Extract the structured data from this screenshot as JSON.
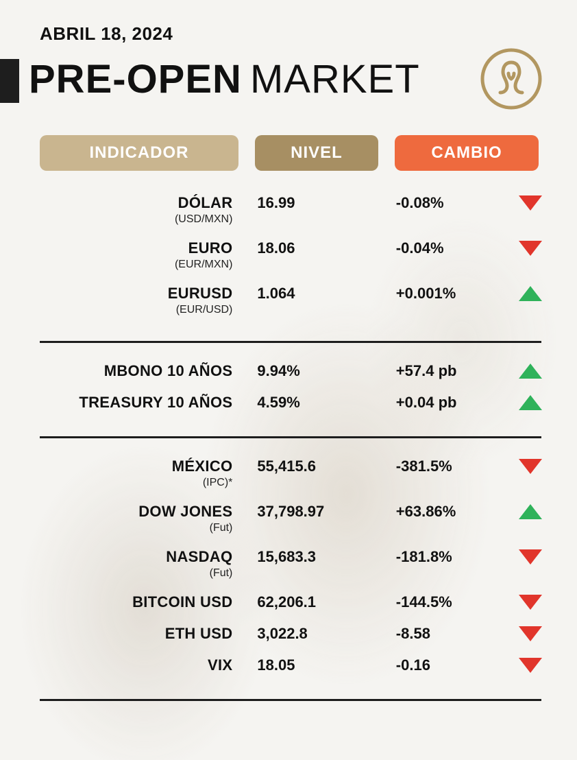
{
  "header": {
    "date": "ABRIL 18, 2024",
    "title_bold": "PRE-OPEN",
    "title_light": "MARKET"
  },
  "colors": {
    "accent_block": "#1e1e1e",
    "pill_indicador": "#c9b58f",
    "pill_nivel": "#a78f63",
    "pill_cambio": "#ee6a3e",
    "logo_stroke": "#b29760",
    "up": "#2fb25a",
    "down": "#e1352b",
    "divider": "#1d1d1d",
    "background": "#f5f4f1"
  },
  "columns": {
    "indicador": "INDICADOR",
    "nivel": "NIVEL",
    "cambio": "CAMBIO"
  },
  "sections": [
    {
      "rows": [
        {
          "name": "DÓLAR",
          "sub": "(USD/MXN)",
          "nivel": "16.99",
          "cambio": "-0.08%",
          "dir": "down"
        },
        {
          "name": "EURO",
          "sub": "(EUR/MXN)",
          "nivel": "18.06",
          "cambio": "-0.04%",
          "dir": "down"
        },
        {
          "name": "EURUSD",
          "sub": "(EUR/USD)",
          "nivel": "1.064",
          "cambio": "+0.001%",
          "dir": "up"
        }
      ]
    },
    {
      "rows": [
        {
          "name": "MBONO 10 AÑOS",
          "sub": "",
          "nivel": "9.94%",
          "cambio": "+57.4 pb",
          "dir": "up"
        },
        {
          "name": "TREASURY 10 AÑOS",
          "sub": "",
          "nivel": "4.59%",
          "cambio": "+0.04 pb",
          "dir": "up"
        }
      ]
    },
    {
      "rows": [
        {
          "name": "MÉXICO",
          "sub": "(IPC)*",
          "nivel": "55,415.6",
          "cambio": "-381.5%",
          "dir": "down"
        },
        {
          "name": "DOW JONES",
          "sub": "(Fut)",
          "nivel": "37,798.97",
          "cambio": "+63.86%",
          "dir": "up"
        },
        {
          "name": "NASDAQ",
          "sub": "(Fut)",
          "nivel": "15,683.3",
          "cambio": "-181.8%",
          "dir": "down"
        },
        {
          "name": "BITCOIN USD",
          "sub": "",
          "nivel": "62,206.1",
          "cambio": "-144.5%",
          "dir": "down"
        },
        {
          "name": "ETH USD",
          "sub": "",
          "nivel": "3,022.8",
          "cambio": "-8.58",
          "dir": "down"
        },
        {
          "name": "VIX",
          "sub": "",
          "nivel": "18.05",
          "cambio": "-0.16",
          "dir": "down"
        }
      ]
    }
  ]
}
